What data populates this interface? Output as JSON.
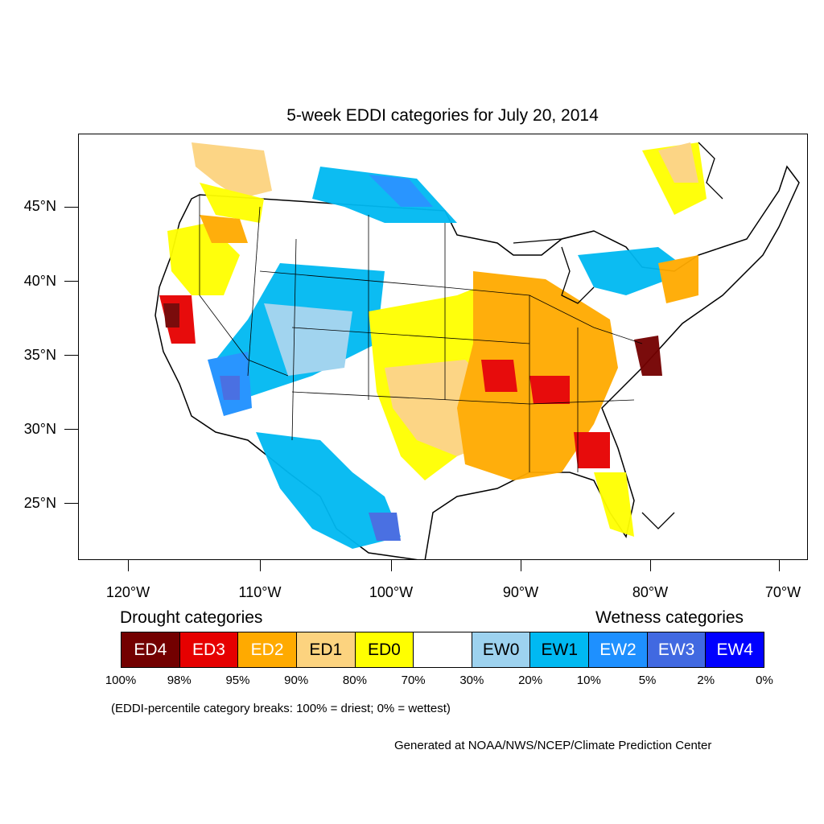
{
  "title": "5-week EDDI categories for July 20, 2014",
  "lat_labels": [
    "45°N",
    "40°N",
    "35°N",
    "30°N",
    "25°N"
  ],
  "lon_labels": [
    "120°W",
    "110°W",
    "100°W",
    "90°W",
    "80°W",
    "70°W"
  ],
  "legend": {
    "drought_heading": "Drought categories",
    "wetness_heading": "Wetness categories",
    "categories": [
      {
        "label": "ED4",
        "color": "#730000",
        "text_color": "#ffffff"
      },
      {
        "label": "ED3",
        "color": "#e60000",
        "text_color": "#ffffff"
      },
      {
        "label": "ED2",
        "color": "#ffaa00",
        "text_color": "#ffffff"
      },
      {
        "label": "ED1",
        "color": "#fcd37f",
        "text_color": "#000000"
      },
      {
        "label": "ED0",
        "color": "#ffff00",
        "text_color": "#000000"
      },
      {
        "label": "",
        "color": "#ffffff",
        "text_color": "#000000"
      },
      {
        "label": "EW0",
        "color": "#9dd2ef",
        "text_color": "#000000"
      },
      {
        "label": "EW1",
        "color": "#00b9f2",
        "text_color": "#000000"
      },
      {
        "label": "EW2",
        "color": "#1e90ff",
        "text_color": "#ffffff"
      },
      {
        "label": "EW3",
        "color": "#4169e1",
        "text_color": "#ffffff"
      },
      {
        "label": "EW4",
        "color": "#0000ff",
        "text_color": "#ffffff"
      }
    ],
    "breaks": [
      "100%",
      "98%",
      "95%",
      "90%",
      "80%",
      "70%",
      "30%",
      "20%",
      "10%",
      "5%",
      "2%",
      "0%"
    ],
    "note": "(EDDI-percentile category breaks: 100% = driest; 0% = wettest)"
  },
  "credit": "Generated at NOAA/NWS/NCEP/Climate Prediction Center"
}
